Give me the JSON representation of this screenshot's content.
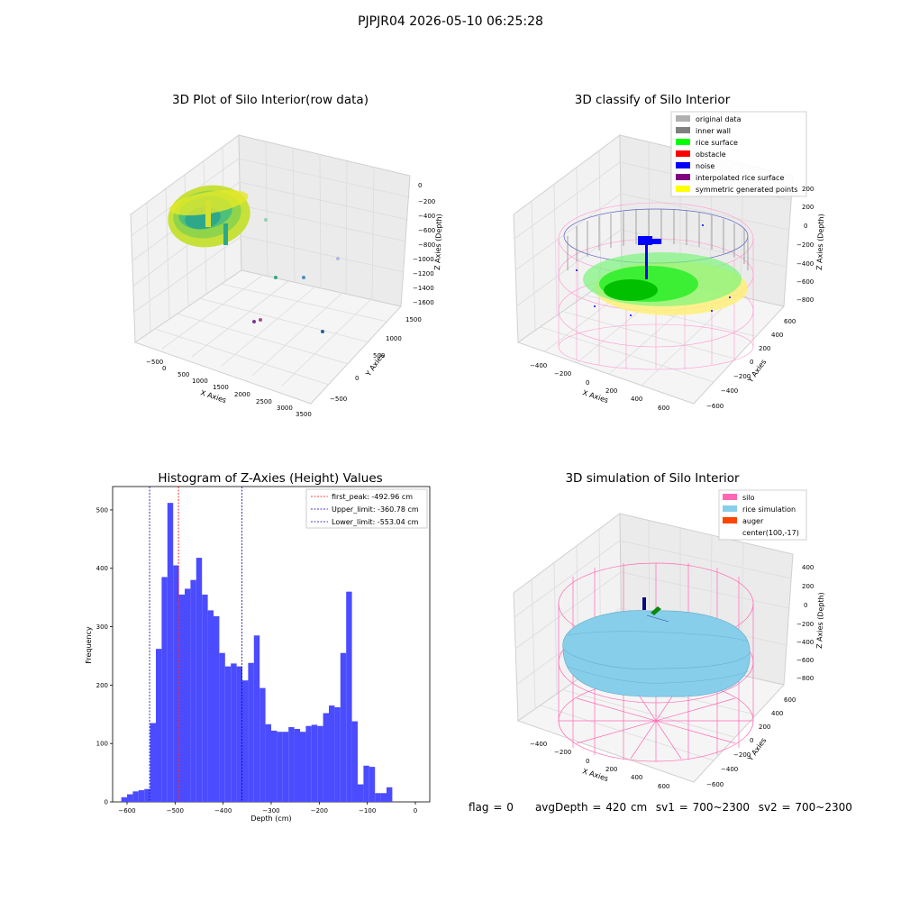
{
  "suptitle": "PJPJR04 2026-05-10 06:25:28",
  "status": {
    "flag": "flag = 0",
    "avg_depth": "avgDepth = 420 cm",
    "sv1": "sv1 = 700~2300",
    "sv2": "sv2 = 700~2300"
  },
  "colors": {
    "hist_bar": "#4b4bff",
    "first_peak": "#ff0000",
    "limits": "#0000aa",
    "silo": "#ff69b4",
    "rice_simulation": "#87ceeb",
    "auger": "#ff4500",
    "rice_surface": "#00ff00",
    "noise": "#0000ff",
    "inner_wall": "#808080",
    "original_data": "#b0b0b0",
    "obstacle": "#ff0000",
    "interpolated": "#800080",
    "symmetric": "#ffff00"
  },
  "chart_data": [
    {
      "type": "scatter",
      "title": "3D Plot of Silo Interior(row data)",
      "xlabel": "X Axies",
      "ylabel": "Y Axies",
      "zlabel": "Z Axies (Depth)",
      "x_ticks": [
        "−500",
        "0",
        "500",
        "1000",
        "1500",
        "2000",
        "2500",
        "3000",
        "3500"
      ],
      "y_ticks": [
        "−500",
        "0",
        "500",
        "1000",
        "1500"
      ],
      "z_ticks": [
        "0",
        "−200",
        "−400",
        "−600",
        "−800",
        "−1000",
        "−1200",
        "−1400",
        "−1600"
      ]
    },
    {
      "type": "scatter",
      "title": "3D classify of Silo Interior",
      "xlabel": "X Axies",
      "ylabel": "Y Axies",
      "zlabel": "Z Axies (Depth)",
      "x_ticks": [
        "−400",
        "−200",
        "0",
        "200",
        "400",
        "600"
      ],
      "y_ticks": [
        "−600",
        "−400",
        "−200",
        "0",
        "200",
        "400",
        "600"
      ],
      "z_ticks": [
        "200",
        "0",
        "−200",
        "−400",
        "−600",
        "−800"
      ],
      "legend": [
        {
          "label": "original data",
          "color": "#b0b0b0"
        },
        {
          "label": "inner wall",
          "color": "#808080"
        },
        {
          "label": "rice surface",
          "color": "#00ff00"
        },
        {
          "label": "obstacle",
          "color": "#ff0000"
        },
        {
          "label": "noise",
          "color": "#0000ff"
        },
        {
          "label": "interpolated rice surface",
          "color": "#800080"
        },
        {
          "label": "symmetric generated points",
          "color": "#ffff00"
        }
      ]
    },
    {
      "type": "bar",
      "title": "Histogram of Z-Axies (Height) Values",
      "xlabel": "Depth (cm)",
      "ylabel": "Frequency",
      "xlim": [
        -630,
        30
      ],
      "ylim": [
        0,
        540
      ],
      "x_ticks": [
        -600,
        -500,
        -400,
        -300,
        -200,
        -100,
        0
      ],
      "x_tick_labels": [
        "−600",
        "−500",
        "−400",
        "−300",
        "−200",
        "−100",
        "0"
      ],
      "y_ticks": [
        0,
        100,
        200,
        300,
        400,
        500
      ],
      "bin_edges_start": -612,
      "bin_width": 12,
      "values": [
        8,
        13,
        18,
        20,
        22,
        135,
        262,
        385,
        512,
        405,
        355,
        365,
        380,
        418,
        355,
        328,
        318,
        255,
        232,
        237,
        232,
        208,
        238,
        285,
        195,
        133,
        122,
        120,
        120,
        128,
        125,
        120,
        130,
        132,
        130,
        152,
        165,
        162,
        255,
        360,
        138,
        30,
        62,
        60,
        15,
        15,
        25
      ],
      "lines": [
        {
          "label": "first_peak: -492.96 cm",
          "x": -492.96,
          "color": "#ff0000"
        },
        {
          "label": "Upper_limit: -360.78 cm",
          "x": -360.78,
          "color": "#0000aa"
        },
        {
          "label": "Lower_limit: -553.04 cm",
          "x": -553.04,
          "color": "#0000aa"
        }
      ]
    },
    {
      "type": "area",
      "title": "3D simulation of Silo Interior",
      "xlabel": "X Axies",
      "ylabel": "Y Axies",
      "zlabel": "Z Axies (Depth)",
      "x_ticks": [
        "−400",
        "−200",
        "0",
        "200",
        "400",
        "600"
      ],
      "y_ticks": [
        "−600",
        "−400",
        "−200",
        "0",
        "200",
        "400",
        "600"
      ],
      "z_ticks": [
        "400",
        "200",
        "0",
        "−200",
        "−400",
        "−600",
        "−800"
      ],
      "legend": [
        {
          "label": "silo",
          "color": "#ff69b4"
        },
        {
          "label": "rice simulation",
          "color": "#87ceeb"
        },
        {
          "label": "auger",
          "color": "#ff4500"
        },
        {
          "label": "center(100,-17)",
          "color": "none"
        }
      ]
    }
  ]
}
